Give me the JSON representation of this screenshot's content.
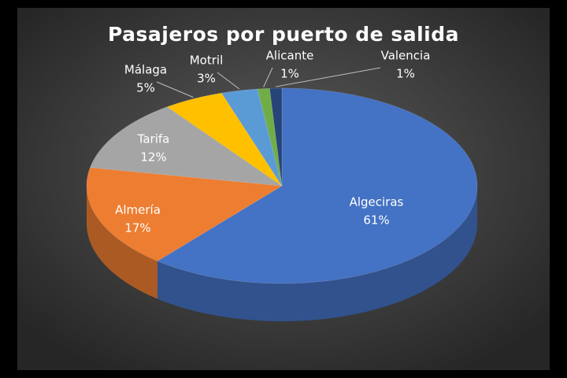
{
  "chart_data": {
    "type": "pie",
    "title": "Pasajeros por puerto de salida",
    "categories": [
      "Algeciras",
      "Almería",
      "Tarifa",
      "Málaga",
      "Motril",
      "Alicante",
      "Valencia"
    ],
    "values": [
      61,
      17,
      12,
      5,
      3,
      1,
      1
    ],
    "value_labels": [
      "61%",
      "17%",
      "12%",
      "5%",
      "3%",
      "1%",
      "1%"
    ],
    "colors": [
      "#4472c4",
      "#ed7d31",
      "#a5a5a5",
      "#ffc000",
      "#5b9bd5",
      "#70ad47",
      "#264478"
    ]
  }
}
